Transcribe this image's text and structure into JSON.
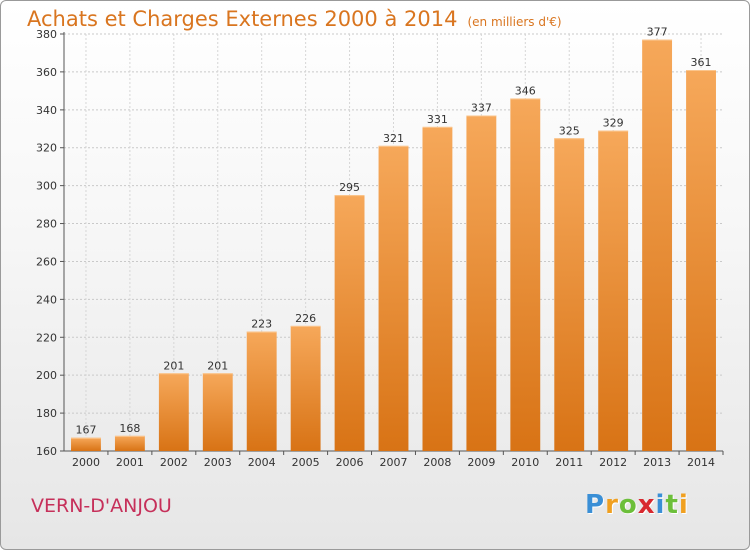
{
  "header": {
    "title": "Achats et Charges Externes 2000 à 2014",
    "subtitle": "(en milliers d'€)"
  },
  "footer": {
    "commune": "VERN-D'ANJOU",
    "logo_text": "Proxiti"
  },
  "colors": {
    "bar_light": "#f6a85a",
    "bar_dark": "#d87315",
    "title": "#d9751f",
    "commune": "#c6305a",
    "logo_p": "#3a8fd6",
    "logo_r": "#f0a020",
    "logo_o": "#6cbf3a",
    "logo_x": "#d8282e",
    "logo_i": "#3a8fd6",
    "logo_t": "#6cbf3a",
    "logo_i2": "#f0a020"
  },
  "chart_data": {
    "type": "bar",
    "title": "Achats et Charges Externes 2000 à 2014",
    "subtitle": "(en milliers d'€)",
    "xlabel": "",
    "ylabel": "",
    "categories": [
      "2000",
      "2001",
      "2002",
      "2003",
      "2004",
      "2005",
      "2006",
      "2007",
      "2008",
      "2009",
      "2010",
      "2011",
      "2012",
      "2013",
      "2014"
    ],
    "values": [
      167,
      168,
      201,
      201,
      223,
      226,
      295,
      321,
      331,
      337,
      346,
      325,
      329,
      377,
      361
    ],
    "ylim": [
      160,
      380
    ],
    "yticks": [
      160,
      180,
      200,
      220,
      240,
      260,
      280,
      300,
      320,
      340,
      360,
      380
    ],
    "grid": true
  }
}
